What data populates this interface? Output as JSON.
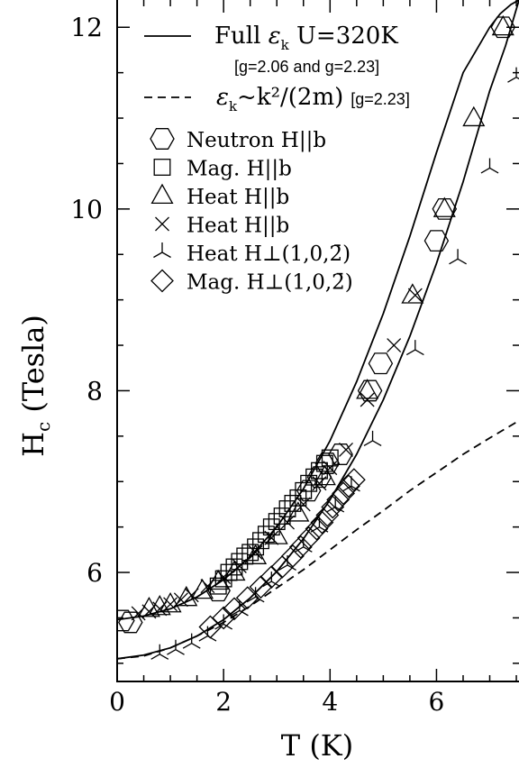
{
  "chart_data": {
    "type": "scatter",
    "title": "",
    "xlabel": "T (K)",
    "ylabel_main": "H",
    "ylabel_sub": "c",
    "ylabel_tail": " (Tesla)",
    "xlim": [
      0,
      7.55
    ],
    "ylim": [
      4.8,
      12.3
    ],
    "x_ticks": [
      0,
      2,
      4,
      6
    ],
    "x_tick_labels": [
      "0",
      "2",
      "4",
      "6"
    ],
    "y_ticks": [
      6,
      8,
      10,
      12
    ],
    "y_tick_labels": [
      "6",
      "8",
      "10",
      "12"
    ],
    "grid": false,
    "legend_position": "top-left",
    "lines": [
      {
        "style": "solid",
        "line1": {
          "before": "Full ",
          "symbol": "ε",
          "sub": "k",
          "after": "   U=320K"
        },
        "line2": "[g=2.06 and g=2.23]",
        "curves": [
          {
            "x": [
              0.0,
              0.5,
              1.0,
              1.5,
              2.0,
              2.5,
              3.0,
              3.5,
              4.0,
              4.5,
              5.0,
              5.5,
              6.0,
              6.5,
              7.0,
              7.2,
              7.4,
              7.55
            ],
            "y": [
              5.48,
              5.52,
              5.6,
              5.73,
              5.92,
              6.17,
              6.5,
              6.92,
              7.45,
              8.1,
              8.85,
              9.7,
              10.62,
              11.5,
              12.0,
              12.15,
              12.25,
              12.3
            ]
          },
          {
            "x": [
              0.0,
              0.5,
              1.0,
              1.5,
              2.0,
              2.5,
              3.0,
              3.5,
              4.0,
              4.5,
              5.0,
              5.5,
              6.0,
              6.5,
              7.0,
              7.3,
              7.55
            ],
            "y": [
              5.05,
              5.09,
              5.17,
              5.3,
              5.48,
              5.72,
              6.01,
              6.37,
              6.8,
              7.3,
              7.9,
              8.6,
              9.4,
              10.3,
              11.3,
              11.8,
              12.3
            ]
          }
        ]
      },
      {
        "style": "dashed",
        "label": {
          "symbol": "ε",
          "sub": "k",
          "middle": "~k²/(2m)",
          "tail": "[g=2.23]"
        },
        "curves": [
          {
            "x": [
              0.0,
              0.5,
              1.0,
              1.5,
              2.0,
              2.5,
              3.0,
              3.5,
              4.0,
              4.5,
              5.0,
              5.5,
              6.0,
              6.5,
              7.0,
              7.55
            ],
            "y": [
              5.05,
              5.08,
              5.17,
              5.3,
              5.45,
              5.63,
              5.83,
              6.03,
              6.25,
              6.47,
              6.68,
              6.9,
              7.1,
              7.3,
              7.48,
              7.67
            ]
          }
        ]
      }
    ],
    "series": [
      {
        "name": "Neutron H||b",
        "marker": "hexagon",
        "x": [
          0.1,
          0.25,
          1.9,
          3.6,
          3.8,
          3.95,
          4.2,
          4.75,
          4.95,
          6.0,
          6.15,
          7.25
        ],
        "y": [
          5.47,
          5.45,
          5.8,
          6.9,
          7.05,
          7.2,
          7.3,
          8.0,
          8.3,
          9.65,
          10.0,
          12.0
        ]
      },
      {
        "name": "Mag. H||b",
        "marker": "square",
        "x": [
          1.9,
          2.0,
          2.1,
          2.2,
          2.3,
          2.4,
          2.5,
          2.6,
          2.7,
          2.8,
          2.9,
          3.0,
          3.1,
          3.2,
          3.3,
          3.4,
          3.5,
          3.6,
          3.7,
          3.8,
          3.9,
          4.0
        ],
        "y": [
          5.85,
          5.93,
          6.0,
          6.06,
          6.12,
          6.18,
          6.22,
          6.28,
          6.35,
          6.42,
          6.5,
          6.56,
          6.62,
          6.7,
          6.76,
          6.82,
          6.9,
          6.98,
          7.05,
          7.12,
          7.2,
          7.26
        ]
      },
      {
        "name": "Heat H||b",
        "marker": "triangle",
        "x": [
          0.6,
          0.8,
          1.0,
          1.3,
          1.6,
          1.9,
          2.2,
          2.6,
          3.0,
          3.4,
          3.9,
          4.7,
          5.55,
          6.15,
          6.7,
          7.25
        ],
        "y": [
          5.6,
          5.62,
          5.65,
          5.72,
          5.8,
          5.9,
          6.0,
          6.18,
          6.4,
          6.65,
          7.05,
          8.0,
          9.05,
          10.0,
          11.0,
          12.0
        ]
      },
      {
        "name": "Heat H||b",
        "marker": "cross",
        "x": [
          0.4,
          0.6,
          0.8,
          1.0,
          1.2,
          1.4,
          1.7,
          2.0,
          2.3,
          2.6,
          2.9,
          3.2,
          3.5,
          3.8,
          4.0,
          4.3,
          4.7,
          5.2,
          5.6
        ],
        "y": [
          5.55,
          5.57,
          5.6,
          5.65,
          5.7,
          5.75,
          5.85,
          5.95,
          6.07,
          6.22,
          6.38,
          6.55,
          6.75,
          6.98,
          7.15,
          7.35,
          7.9,
          8.5,
          9.05
        ]
      },
      {
        "name": "Heat H⊥(1,0,2̄)",
        "marker": "tri",
        "x": [
          0.8,
          1.1,
          1.4,
          1.7,
          2.0,
          2.3,
          2.6,
          2.9,
          3.2,
          3.5,
          3.8,
          4.1,
          4.4,
          4.8,
          5.6,
          6.4,
          7.0,
          7.5
        ],
        "y": [
          5.1,
          5.15,
          5.22,
          5.3,
          5.43,
          5.58,
          5.73,
          5.9,
          6.08,
          6.28,
          6.5,
          6.72,
          6.95,
          7.45,
          8.45,
          9.45,
          10.45,
          11.45
        ]
      },
      {
        "name": "Mag. H⊥(1,0,2̄)",
        "marker": "diamond",
        "x": [
          1.75,
          2.0,
          2.2,
          2.45,
          2.7,
          2.9,
          3.1,
          3.3,
          3.45,
          3.6,
          3.75,
          3.85,
          3.95,
          4.05,
          4.15,
          4.25,
          4.35,
          4.45
        ],
        "y": [
          5.4,
          5.5,
          5.6,
          5.72,
          5.84,
          5.95,
          6.06,
          6.18,
          6.28,
          6.38,
          6.48,
          6.55,
          6.63,
          6.72,
          6.8,
          6.87,
          6.95,
          7.02
        ]
      }
    ]
  }
}
